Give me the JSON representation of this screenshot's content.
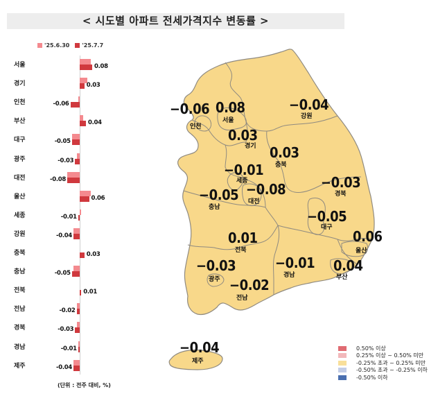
{
  "title": "< 시도별 아파트 전세가격지수 변동률 >",
  "bar_legend": [
    {
      "label": "'25.6.30",
      "color": "#f48a8f"
    },
    {
      "label": "'25.7.7",
      "color": "#d0393e"
    }
  ],
  "unit_note": "(단위 : 전주 대비, %)",
  "map_legend": [
    {
      "label": "0.50% 이상",
      "color": "#e06b72"
    },
    {
      "label": "0.25% 이상 ~ 0.50% 미만",
      "color": "#f2b8bb"
    },
    {
      "label": "-0.25% 초과 ~ 0.25% 미만",
      "color": "#f8df9a"
    },
    {
      "label": "-0.50% 초과 ~ -0.25% 이하",
      "color": "#c3cde6"
    },
    {
      "label": "-0.50% 이하",
      "color": "#4a6fb0"
    }
  ],
  "map_regions": [
    {
      "name": "서울",
      "value": "0.08"
    },
    {
      "name": "인천",
      "value": "-0.06"
    },
    {
      "name": "경기",
      "value": "0.03"
    },
    {
      "name": "강원",
      "value": "-0.04"
    },
    {
      "name": "충북",
      "value": "0.03"
    },
    {
      "name": "세종",
      "value": "-0.01"
    },
    {
      "name": "대전",
      "value": "-0.08"
    },
    {
      "name": "충남",
      "value": "-0.05"
    },
    {
      "name": "경북",
      "value": "-0.03"
    },
    {
      "name": "대구",
      "value": "-0.05"
    },
    {
      "name": "울산",
      "value": "0.06"
    },
    {
      "name": "전북",
      "value": "0.01"
    },
    {
      "name": "광주",
      "value": "-0.03"
    },
    {
      "name": "전남",
      "value": "-0.02"
    },
    {
      "name": "경남",
      "value": "-0.01"
    },
    {
      "name": "부산",
      "value": "0.04"
    },
    {
      "name": "제주",
      "value": "-0.04"
    }
  ],
  "chart_data": [
    {
      "type": "bar",
      "orientation": "horizontal",
      "title": "시도별 아파트 전세가격지수 변동률",
      "xlabel": "전주 대비 (%)",
      "ylabel": "",
      "categories": [
        "서울",
        "경기",
        "인천",
        "부산",
        "대구",
        "광주",
        "대전",
        "울산",
        "세종",
        "강원",
        "충북",
        "충남",
        "전북",
        "전남",
        "경북",
        "경남",
        "제주"
      ],
      "series": [
        {
          "name": "'25.6.30",
          "values": [
            0.07,
            0.05,
            -0.01,
            0.02,
            -0.05,
            -0.02,
            -0.08,
            0.07,
            0.01,
            -0.04,
            0.0,
            -0.04,
            0.0,
            -0.02,
            -0.02,
            -0.01,
            -0.04
          ]
        },
        {
          "name": "'25.7.7",
          "values": [
            0.08,
            0.03,
            -0.06,
            0.04,
            -0.05,
            -0.03,
            -0.08,
            0.06,
            -0.01,
            -0.04,
            0.03,
            -0.05,
            0.01,
            -0.02,
            -0.03,
            -0.01,
            -0.04
          ]
        }
      ],
      "data_labels": [
        "0.08",
        "0.03",
        "-0.06",
        "0.04",
        "-0.05",
        "-0.03",
        "-0.08",
        "0.06",
        "-0.01",
        "-0.04",
        "0.03",
        "-0.05",
        "0.01",
        "-0.02",
        "-0.03",
        "-0.01",
        "-0.04"
      ],
      "legend_position": "top",
      "grid": false
    },
    {
      "type": "choropleth",
      "title": "시도별 아파트 전세가격지수 변동률 ('25.7.7)",
      "regions": [
        "서울",
        "인천",
        "경기",
        "강원",
        "충북",
        "세종",
        "대전",
        "충남",
        "경북",
        "대구",
        "울산",
        "전북",
        "광주",
        "전남",
        "경남",
        "부산",
        "제주"
      ],
      "values": [
        0.08,
        -0.06,
        0.03,
        -0.04,
        0.03,
        -0.01,
        -0.08,
        -0.05,
        -0.03,
        -0.05,
        0.06,
        0.01,
        -0.03,
        -0.02,
        -0.01,
        0.04,
        -0.04
      ],
      "legend": [
        "0.50% 이상",
        "0.25% 이상 ~ 0.50% 미만",
        "-0.25% 초과 ~ 0.25% 미만",
        "-0.50% 초과 ~ -0.25% 이하",
        "-0.50% 이하"
      ]
    }
  ]
}
